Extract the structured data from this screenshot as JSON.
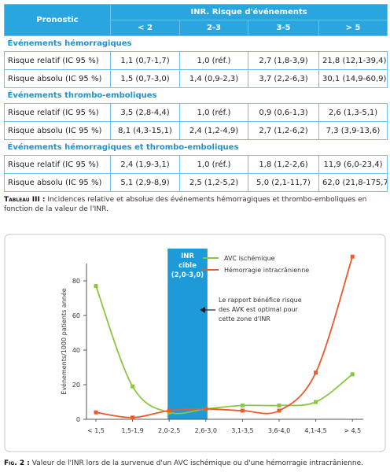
{
  "table": {
    "header": {
      "pronostic": "Pronostic",
      "group": "INR. Risque d'événements",
      "columns": [
        "< 2",
        "2-3",
        "3-5",
        "> 5"
      ]
    },
    "sections": [
      {
        "title": "Événements hémorragiques",
        "rows": [
          [
            "Risque relatif (IC 95 %)",
            "1,1 (0,7-1,7)",
            "1,0 (réf.)",
            "2,7 (1,8-3,9)",
            "21,8 (12,1-39,4)"
          ],
          [
            "Risque absolu (IC 95 %)",
            "1,5 (0,7-3,0)",
            "1,4 (0,9-2,3)",
            "3,7 (2,2-6,3)",
            "30,1 (14,9-60,9)"
          ]
        ]
      },
      {
        "title": "Événements thrombo-emboliques",
        "rows": [
          [
            "Risque relatif (IC 95 %)",
            "3,5 (2,8-4,4)",
            "1,0 (réf.)",
            "0,9 (0,6-1,3)",
            "2,6 (1,3-5,1)"
          ],
          [
            "Risque absolu (IC 95 %)",
            "8,1 (4,3-15,1)",
            "2,4 (1,2-4,9)",
            "2,7 (1,2-6,2)",
            "7,3 (3,9-13,6)"
          ]
        ]
      },
      {
        "title": "Événements hémorragiques et thrombo-emboliques",
        "rows": [
          [
            "Risque relatif (IC 95 %)",
            "2,4 (1,9-3,1)",
            "1,0 (réf.)",
            "1,8 (1,2-2,6)",
            "11,9 (6,0-23,4)"
          ],
          [
            "Risque absolu (IC 95 %)",
            "5,1 (2,9-8,9)",
            "2,5 (1,2-5,2)",
            "5,0 (2,1-11,7)",
            "62,0 (21,8-175,7)"
          ]
        ]
      }
    ]
  },
  "table_caption": {
    "label": "Tableau III :",
    "text": "Incidences relative et absolue des événements hémorragiques et thrombo-emboliques en fonction de la valeur de l'INR."
  },
  "chart_data": {
    "type": "line",
    "y_label": "Événements/1000 patients année",
    "categories": [
      "< 1,5",
      "1,5-1,9",
      "2,0-2,5",
      "2,6-3,0",
      "3,1-3,5",
      "3,6-4,0",
      "4,1-4,5",
      "> 4,5"
    ],
    "series": [
      {
        "name": "AVC ischémique",
        "color": "#8cc63e",
        "values": [
          77,
          19,
          4,
          6,
          8,
          8,
          10,
          26
        ]
      },
      {
        "name": "Hémorragie intracrânienne",
        "color": "#ea5b2d",
        "values": [
          4,
          1,
          5,
          6,
          5,
          5,
          27,
          94
        ]
      }
    ],
    "ylim": [
      0,
      90
    ],
    "yticks": [
      0,
      20,
      40,
      60,
      80
    ],
    "band_label": [
      "INR",
      "cible",
      "(2,0-3,0)"
    ],
    "annotation": [
      "Le rapport bénéfice risque",
      "des AVK est optimal pour",
      "cette zone d'INR"
    ]
  },
  "figure_caption": {
    "label": "Fig. 2 :",
    "text": "Valeur de l'INR lors de la survenue d'un AVC ischémique ou d'une hémorragie intracrânienne."
  }
}
